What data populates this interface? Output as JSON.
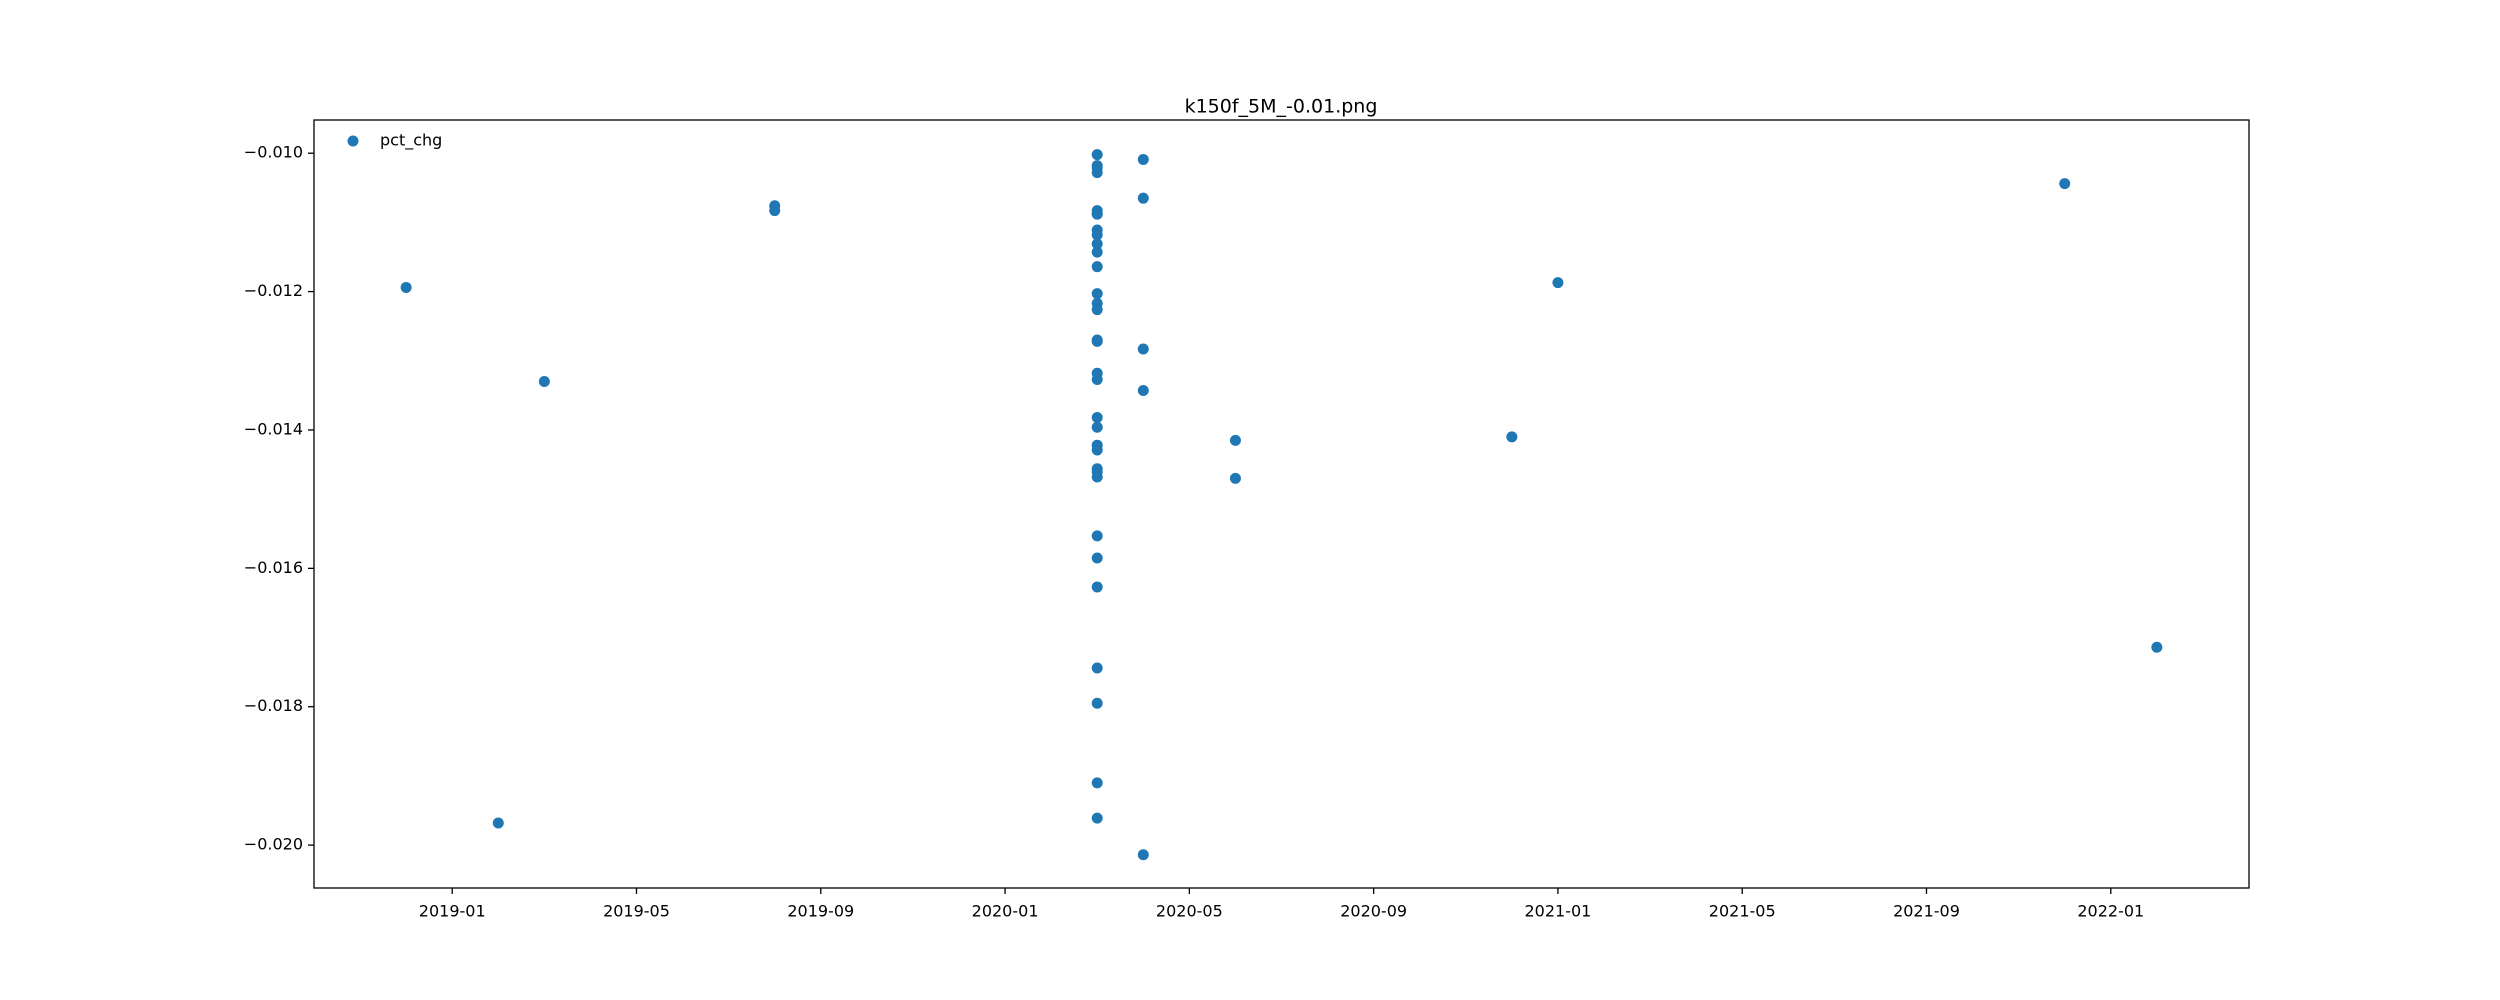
{
  "chart_data": {
    "type": "scatter",
    "title": "k150f_5M_-0.01.png",
    "x": [
      "2018-12",
      "2019-02",
      "2019-03",
      "2019-08",
      "2019-08",
      "2020-03",
      "2020-03",
      "2020-03",
      "2020-03",
      "2020-03",
      "2020-04",
      "2020-04",
      "2020-03",
      "2020-03",
      "2020-03",
      "2020-03",
      "2020-03",
      "2020-03",
      "2020-03",
      "2020-03",
      "2020-03",
      "2020-03",
      "2020-03",
      "2020-04",
      "2020-03",
      "2020-03",
      "2020-03",
      "2020-03",
      "2020-04",
      "2020-03",
      "2020-03",
      "2020-03",
      "2020-03",
      "2020-03",
      "2020-03",
      "2020-03",
      "2020-03",
      "2020-03",
      "2020-03",
      "2020-03",
      "2020-03",
      "2020-03",
      "2020-04",
      "2020-06",
      "2020-06",
      "2020-12",
      "2021-01",
      "2021-12",
      "2022-02"
    ],
    "series": [
      {
        "name": "pct_chg",
        "color": "#1f77b4",
        "values": [
          -0.01194,
          -0.01968,
          -0.0133,
          -0.01076,
          -0.01083,
          -0.01461,
          -0.01018,
          -0.01021,
          -0.01028,
          -0.01002,
          -0.01009,
          -0.01065,
          -0.01083,
          -0.01088,
          -0.01088,
          -0.01111,
          -0.01118,
          -0.01131,
          -0.01143,
          -0.01164,
          -0.01203,
          -0.01217,
          -0.01226,
          -0.01283,
          -0.0127,
          -0.01272,
          -0.01318,
          -0.01327,
          -0.01343,
          -0.01382,
          -0.01396,
          -0.01422,
          -0.01429,
          -0.01456,
          -0.01468,
          -0.01553,
          -0.01585,
          -0.01627,
          -0.01744,
          -0.01795,
          -0.0191,
          -0.01961,
          -0.02014,
          -0.0147,
          -0.01415,
          -0.0141,
          -0.01187,
          -0.01044,
          -0.01714
        ]
      }
    ],
    "xlim": [
      "2018-10",
      "2022-04"
    ],
    "xticks": [
      "2019-01",
      "2019-05",
      "2019-09",
      "2020-01",
      "2020-05",
      "2020-09",
      "2021-01",
      "2021-05",
      "2021-09",
      "2022-01"
    ],
    "ylim": [
      -0.02062,
      -0.00952
    ],
    "yticks": [
      {
        "value": -0.01,
        "label": "−0.010"
      },
      {
        "value": -0.012,
        "label": "−0.012"
      },
      {
        "value": -0.014,
        "label": "−0.014"
      },
      {
        "value": -0.016,
        "label": "−0.016"
      },
      {
        "value": -0.018,
        "label": "−0.018"
      },
      {
        "value": -0.02,
        "label": "−0.020"
      }
    ],
    "legend": "upper left",
    "grid": false
  }
}
